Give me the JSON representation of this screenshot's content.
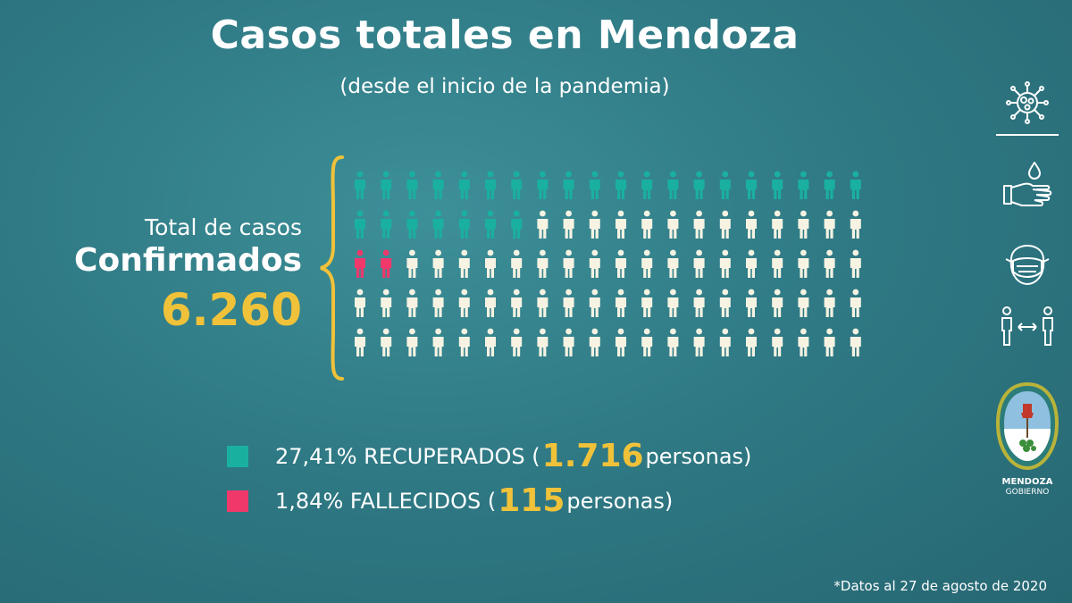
{
  "header": {
    "title": "Casos totales en Mendoza",
    "subtitle": "(desde el inicio de la pandemia)"
  },
  "summary": {
    "label_line1": "Total de casos",
    "label_line2": "Confirmados",
    "total": "6.260"
  },
  "legend": [
    {
      "pct": "27,41% RECUPERADOS (",
      "count": "1.716",
      "suffix": " personas)",
      "color": "#1ab0a0"
    },
    {
      "pct": "1,84% FALLECIDOS (",
      "count": "115",
      "suffix": " personas)",
      "color": "#f0386b"
    }
  ],
  "footnote": "*Datos al 27 de agosto de 2020",
  "logo": {
    "line1": "MENDOZA",
    "line2": "GOBIERNO"
  },
  "sidebar_icons": [
    "virus-icon",
    "hand-wash-icon",
    "face-mask-icon",
    "social-distance-icon"
  ],
  "chart_data": {
    "type": "pictogram",
    "total": 6260,
    "rows": 5,
    "cols": 20,
    "figures_total": 100,
    "series": [
      {
        "name": "RECUPERADOS",
        "percent": 27.41,
        "count": 1716,
        "color": "#1ab0a0"
      },
      {
        "name": "FALLECIDOS",
        "percent": 1.84,
        "count": 115,
        "color": "#f0386b"
      }
    ],
    "rest_color": "#f7f3e3"
  }
}
